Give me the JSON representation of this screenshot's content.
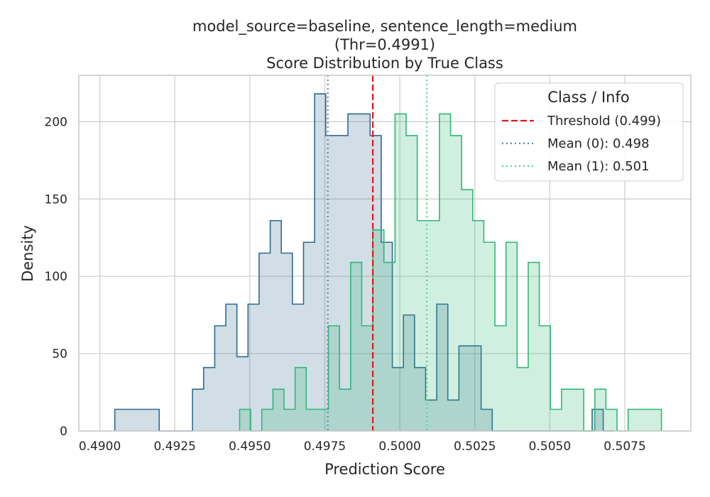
{
  "chart_data": {
    "type": "histogram",
    "title_lines": [
      "model_source=baseline, sentence_length=medium",
      "(Thr=0.4991)",
      "Score Distribution by True Class"
    ],
    "xlabel": "Prediction Score",
    "ylabel": "Density",
    "xlim": [
      0.4893,
      0.5097
    ],
    "ylim": [
      0,
      230
    ],
    "x_ticks": [
      0.49,
      0.4925,
      0.495,
      0.4975,
      0.5,
      0.5025,
      0.505,
      0.5075
    ],
    "x_tick_labels": [
      "0.4900",
      "0.4925",
      "0.4950",
      "0.4975",
      "0.5000",
      "0.5025",
      "0.5050",
      "0.5075"
    ],
    "y_ticks": [
      0,
      50,
      100,
      150,
      200
    ],
    "y_tick_labels": [
      "0",
      "50",
      "100",
      "150",
      "200"
    ],
    "grid": true,
    "colors": {
      "class0": "#2d6a8f",
      "class1": "#2fb877",
      "threshold": "#e8141c",
      "mean0": "#5b8ba8",
      "mean1": "#5fcf9a",
      "grid": "#cccccc",
      "frame": "#c8c8c8"
    },
    "series": [
      {
        "name": "0",
        "bin_edges": [
          0.4905,
          0.49087,
          0.49124,
          0.49161,
          0.49198,
          0.49235,
          0.49272,
          0.49309,
          0.49346,
          0.49383,
          0.4942,
          0.49457,
          0.49494,
          0.49531,
          0.49568,
          0.49605,
          0.49642,
          0.49679,
          0.49716,
          0.49753,
          0.4979,
          0.49827,
          0.49864,
          0.49901,
          0.49938,
          0.49975,
          0.50012,
          0.50049,
          0.50086,
          0.50123,
          0.5016,
          0.50197,
          0.50234,
          0.50271,
          0.50308,
          0.50345,
          0.50382,
          0.50419,
          0.50456,
          0.50493,
          0.5053,
          0.50567,
          0.50604,
          0.50641,
          0.50678,
          0.50715
        ],
        "values": [
          14,
          14,
          14,
          14,
          0,
          0,
          0,
          27,
          41,
          68,
          82,
          48,
          82,
          115,
          136,
          115,
          82,
          122,
          218,
          191,
          191,
          205,
          205,
          191,
          122,
          41,
          75,
          41,
          20,
          82,
          20,
          55,
          55,
          14,
          0,
          0,
          0,
          0,
          0,
          0,
          0,
          0,
          0,
          14,
          0
        ]
      },
      {
        "name": "1",
        "bin_edges": [
          0.49466,
          0.49503,
          0.4954,
          0.49577,
          0.49614,
          0.49651,
          0.49688,
          0.49725,
          0.49762,
          0.49799,
          0.49836,
          0.49873,
          0.4991,
          0.49947,
          0.49984,
          0.50021,
          0.50058,
          0.50095,
          0.50132,
          0.50169,
          0.50206,
          0.50243,
          0.5028,
          0.50317,
          0.50354,
          0.50391,
          0.50428,
          0.50465,
          0.50502,
          0.50539,
          0.50576,
          0.50613,
          0.5065,
          0.50687,
          0.50724,
          0.50761,
          0.50798,
          0.50835,
          0.50872
        ],
        "values": [
          14,
          0,
          14,
          27,
          14,
          41,
          14,
          14,
          68,
          27,
          109,
          68,
          130,
          109,
          205,
          191,
          136,
          136,
          205,
          191,
          156,
          136,
          122,
          68,
          122,
          41,
          109,
          68,
          14,
          27,
          27,
          0,
          27,
          14,
          0,
          14,
          14,
          14
        ]
      }
    ],
    "lines": [
      {
        "kind": "threshold",
        "x": 0.4991,
        "style": "dashed"
      },
      {
        "kind": "mean0",
        "x": 0.4976,
        "style": "dotted"
      },
      {
        "kind": "mean1",
        "x": 0.5009,
        "style": "dotted"
      }
    ],
    "legend": {
      "title": "Class / Info",
      "position": "top-right",
      "entries": [
        "Threshold (0.499)",
        "Mean (0): 0.498",
        "Mean (1): 0.501"
      ]
    }
  }
}
